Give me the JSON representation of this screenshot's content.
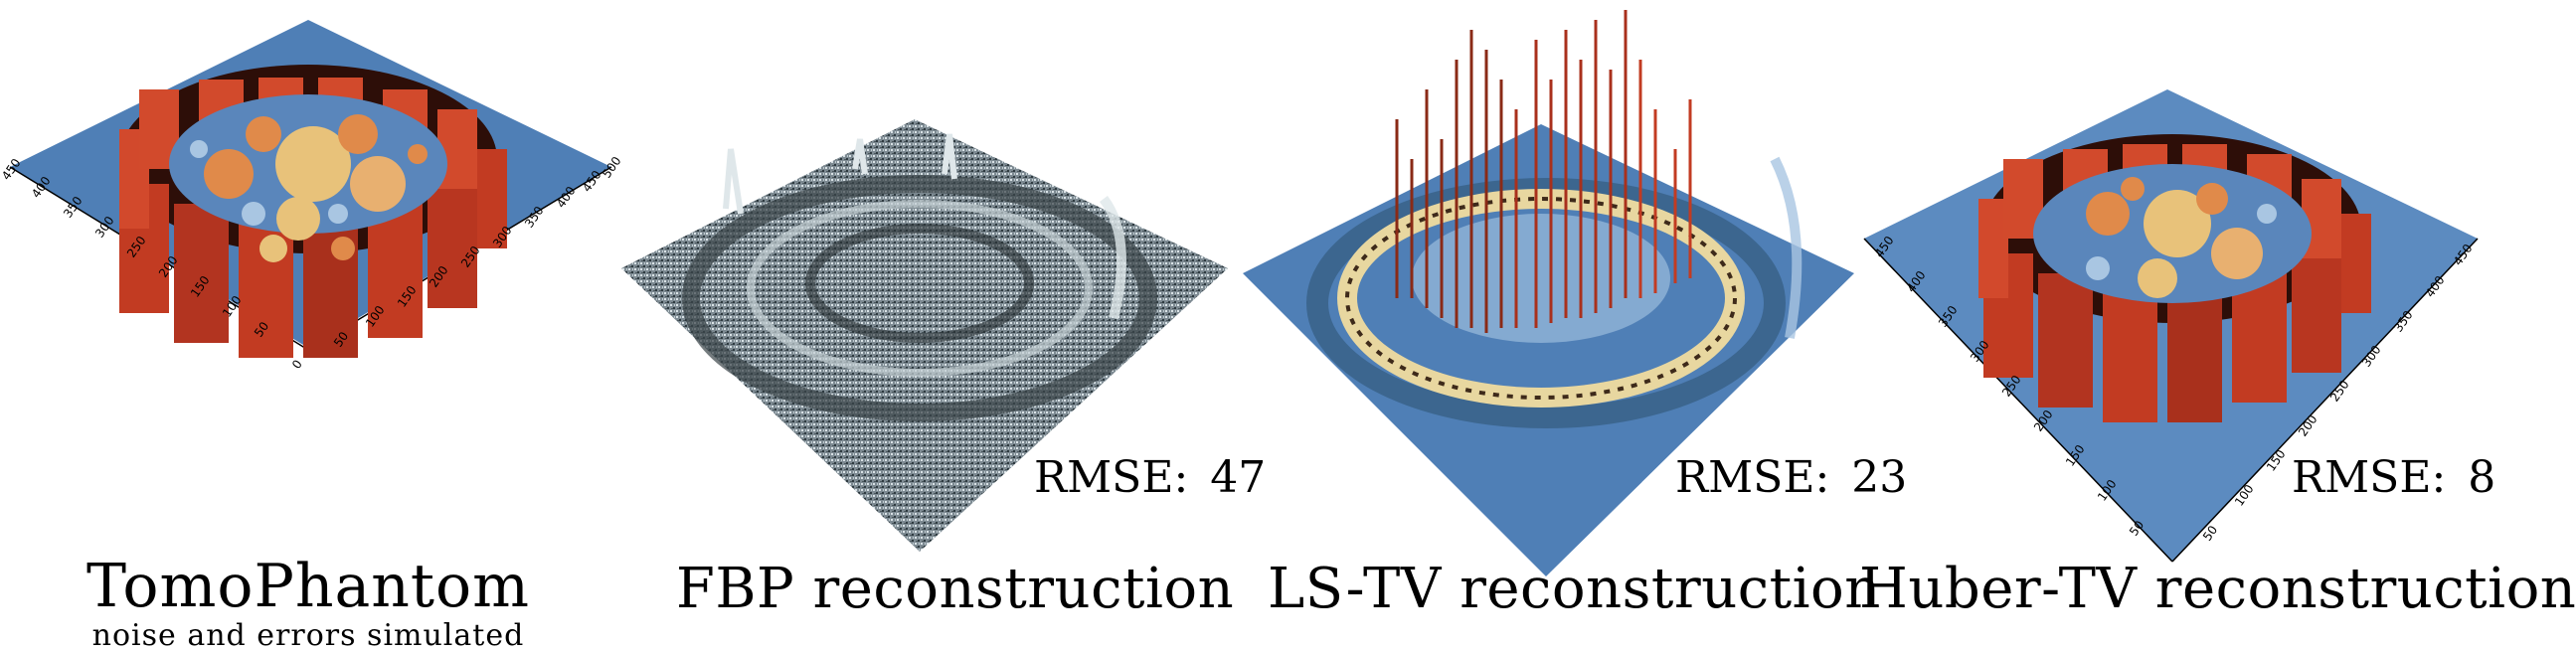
{
  "panels": [
    {
      "id": "tomophantom",
      "title": "TomoPhantom",
      "subtitle": "noise and errors simulated",
      "rmse_label": "",
      "rmse_value": "",
      "axis_ticks_left": [
        "0",
        "50",
        "100",
        "150",
        "200",
        "250",
        "300",
        "350",
        "400",
        "450"
      ],
      "axis_ticks_right": [
        "50",
        "100",
        "150",
        "200",
        "250",
        "300",
        "350",
        "400",
        "450",
        "500"
      ]
    },
    {
      "id": "fbp",
      "title": "FBP reconstruction",
      "subtitle": "",
      "rmse_label": "RMSE:",
      "rmse_value": "47"
    },
    {
      "id": "lstv",
      "title": "LS-TV reconstruction",
      "subtitle": "",
      "rmse_label": "RMSE:",
      "rmse_value": "23"
    },
    {
      "id": "hubertv",
      "title": "Huber-TV reconstruction",
      "subtitle": "",
      "rmse_label": "RMSE:",
      "rmse_value": "8",
      "axis_ticks_left": [
        "50",
        "100",
        "150",
        "200",
        "250",
        "300",
        "350",
        "400",
        "450"
      ],
      "axis_ticks_right": [
        "50",
        "100",
        "150",
        "200",
        "250",
        "300",
        "350",
        "400",
        "450"
      ]
    }
  ],
  "colors": {
    "base_blue": "#4f7fb6",
    "red": "#c23b22",
    "orange": "#e08a4a",
    "yellow": "#e8c27a",
    "light_blue": "#a9c6e2",
    "noise_gray": "#9aa6ad"
  }
}
